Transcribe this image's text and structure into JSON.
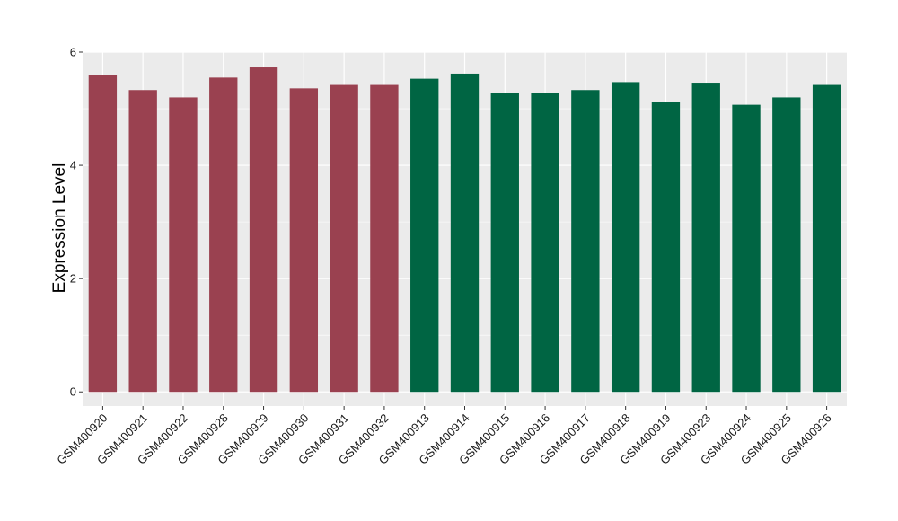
{
  "chart_data": {
    "type": "bar",
    "title": "",
    "xlabel": "",
    "ylabel": "Expression Level",
    "ylim": [
      -0.25,
      6.0
    ],
    "yticks": [
      0,
      2,
      4,
      6
    ],
    "grid": true,
    "legend": "none",
    "categories": [
      "GSM400920",
      "GSM400921",
      "GSM400922",
      "GSM400928",
      "GSM400929",
      "GSM400930",
      "GSM400931",
      "GSM400932",
      "GSM400913",
      "GSM400914",
      "GSM400915",
      "GSM400916",
      "GSM400917",
      "GSM400918",
      "GSM400919",
      "GSM400923",
      "GSM400924",
      "GSM400925",
      "GSM400926"
    ],
    "values": [
      5.6,
      5.33,
      5.2,
      5.55,
      5.73,
      5.36,
      5.42,
      5.42,
      5.53,
      5.62,
      5.28,
      5.28,
      5.33,
      5.47,
      5.12,
      5.46,
      5.07,
      5.2,
      5.42
    ],
    "groups": [
      "1",
      "1",
      "1",
      "1",
      "1",
      "1",
      "1",
      "1",
      "2",
      "2",
      "2",
      "2",
      "2",
      "2",
      "2",
      "2",
      "2",
      "2",
      "2"
    ],
    "group_colors": {
      "1": "#9a4150",
      "2": "#006543"
    }
  },
  "style": {
    "panel_background": "#ebebeb",
    "grid_color": "#ffffff",
    "axis_tick_color": "#333333"
  }
}
